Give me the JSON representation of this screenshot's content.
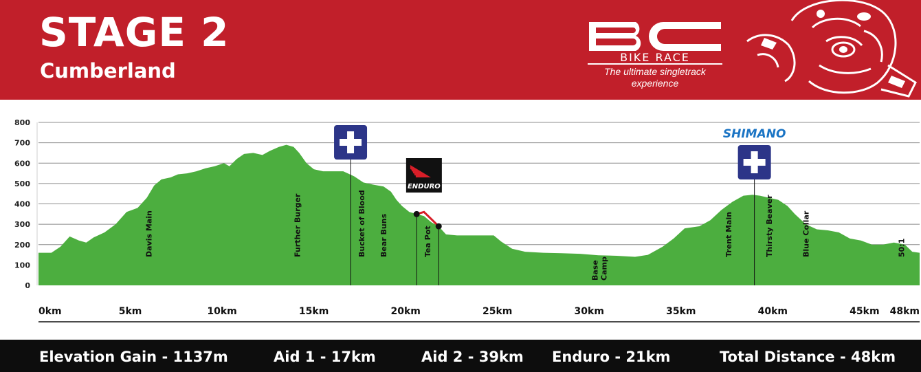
{
  "header": {
    "title": "STAGE 2",
    "subtitle": "Cumberland",
    "logo_mark": "BC",
    "logo_name": "BIKE RACE",
    "logo_tagline": "The ultimate singletrack experience",
    "mascot_icon": "tribal-bear-mascot-icon",
    "colors": {
      "banner": "#c11f2a",
      "text": "#ffffff"
    }
  },
  "chart_data": {
    "type": "area",
    "title": "",
    "xlabel": "",
    "ylabel": "",
    "xlim": [
      0,
      48
    ],
    "ylim": [
      0,
      800
    ],
    "x_ticks": [
      {
        "value": 0,
        "label": "0km"
      },
      {
        "value": 5,
        "label": "5km"
      },
      {
        "value": 10,
        "label": "10km"
      },
      {
        "value": 15,
        "label": "15km"
      },
      {
        "value": 20,
        "label": "20km"
      },
      {
        "value": 25,
        "label": "25km"
      },
      {
        "value": 30,
        "label": "30km"
      },
      {
        "value": 35,
        "label": "35km"
      },
      {
        "value": 40,
        "label": "40km"
      },
      {
        "value": 45,
        "label": "45km"
      },
      {
        "value": 48,
        "label": "48km"
      }
    ],
    "y_ticks": [
      {
        "value": 0,
        "label": "0"
      },
      {
        "value": 100,
        "label": "100"
      },
      {
        "value": 200,
        "label": "200"
      },
      {
        "value": 300,
        "label": "300"
      },
      {
        "value": 400,
        "label": "400"
      },
      {
        "value": 500,
        "label": "500"
      },
      {
        "value": 600,
        "label": "600"
      },
      {
        "value": 700,
        "label": "700"
      },
      {
        "value": 800,
        "label": "800"
      }
    ],
    "grid": true,
    "colors": {
      "fill": "#4cae3f",
      "enduro": "#d81e28",
      "grid": "#8c8c8c",
      "aid_marker": "#2c3588"
    },
    "series": [
      {
        "values": [
          [
            0,
            160
          ],
          [
            0.7,
            160
          ],
          [
            1.2,
            190
          ],
          [
            1.7,
            240
          ],
          [
            2.2,
            220
          ],
          [
            2.6,
            210
          ],
          [
            3.0,
            235
          ],
          [
            3.6,
            260
          ],
          [
            4.2,
            300
          ],
          [
            4.8,
            360
          ],
          [
            5.4,
            380
          ],
          [
            5.9,
            430
          ],
          [
            6.3,
            490
          ],
          [
            6.7,
            520
          ],
          [
            7.2,
            530
          ],
          [
            7.6,
            545
          ],
          [
            8.1,
            550
          ],
          [
            8.6,
            560
          ],
          [
            9.1,
            575
          ],
          [
            9.6,
            585
          ],
          [
            10.1,
            600
          ],
          [
            10.4,
            585
          ],
          [
            10.8,
            620
          ],
          [
            11.2,
            645
          ],
          [
            11.7,
            650
          ],
          [
            12.2,
            640
          ],
          [
            12.6,
            660
          ],
          [
            13.1,
            680
          ],
          [
            13.5,
            690
          ],
          [
            13.9,
            680
          ],
          [
            14.2,
            650
          ],
          [
            14.6,
            600
          ],
          [
            15.0,
            570
          ],
          [
            15.5,
            560
          ],
          [
            16.0,
            560
          ],
          [
            16.6,
            560
          ],
          [
            17.2,
            535
          ],
          [
            17.7,
            505
          ],
          [
            18.2,
            495
          ],
          [
            18.8,
            485
          ],
          [
            19.2,
            460
          ],
          [
            19.5,
            420
          ],
          [
            19.8,
            390
          ],
          [
            20.2,
            360
          ],
          [
            20.6,
            350
          ],
          [
            21.0,
            340
          ],
          [
            21.4,
            310
          ],
          [
            21.8,
            290
          ],
          [
            22.2,
            250
          ],
          [
            22.8,
            245
          ],
          [
            23.5,
            245
          ],
          [
            24.2,
            245
          ],
          [
            24.8,
            245
          ],
          [
            25.2,
            215
          ],
          [
            25.8,
            180
          ],
          [
            26.5,
            165
          ],
          [
            27.5,
            160
          ],
          [
            28.5,
            158
          ],
          [
            29.5,
            155
          ],
          [
            30.5,
            148
          ],
          [
            31.5,
            145
          ],
          [
            32.5,
            140
          ],
          [
            33.2,
            150
          ],
          [
            34.0,
            190
          ],
          [
            34.6,
            230
          ],
          [
            35.2,
            280
          ],
          [
            36.0,
            290
          ],
          [
            36.6,
            320
          ],
          [
            37.2,
            370
          ],
          [
            37.8,
            410
          ],
          [
            38.4,
            440
          ],
          [
            38.9,
            445
          ],
          [
            39.3,
            440
          ],
          [
            39.8,
            430
          ],
          [
            40.3,
            420
          ],
          [
            40.8,
            390
          ],
          [
            41.2,
            350
          ],
          [
            41.8,
            300
          ],
          [
            42.4,
            275
          ],
          [
            43.0,
            270
          ],
          [
            43.6,
            260
          ],
          [
            44.2,
            230
          ],
          [
            44.8,
            220
          ],
          [
            45.4,
            200
          ],
          [
            46.0,
            200
          ],
          [
            46.6,
            210
          ],
          [
            47.2,
            200
          ],
          [
            47.6,
            165
          ],
          [
            48,
            160
          ]
        ]
      }
    ],
    "enduro_segment": [
      [
        20.6,
        350
      ],
      [
        21.0,
        360
      ],
      [
        21.4,
        325
      ],
      [
        21.8,
        290
      ]
    ],
    "location_labels": [
      {
        "text": "Davis Main",
        "x": 6.0
      },
      {
        "text": "Further Burger",
        "x": 14.1
      },
      {
        "text": "Bucket of Blood",
        "x": 17.6
      },
      {
        "text": "Bear Buns",
        "x": 18.8
      },
      {
        "text": "Tea Pot",
        "x": 21.2
      },
      {
        "text": "Base",
        "x": 30.3
      },
      {
        "text": "Camp",
        "x": 30.8
      },
      {
        "text": "Trent Main",
        "x": 37.6
      },
      {
        "text": "Thirsty Beaver",
        "x": 39.8
      },
      {
        "text": "Blue Collar",
        "x": 41.8
      },
      {
        "text": "50:1",
        "x": 47.0
      }
    ],
    "aid_stations": [
      {
        "km": 17,
        "icon": "first-aid-cross-icon"
      },
      {
        "km": 39,
        "icon": "first-aid-cross-icon",
        "sponsor": "SHIMANO"
      }
    ],
    "enduro_badge": {
      "text": "ENDURO",
      "icon": "enduro-logo-icon"
    }
  },
  "footer": {
    "stats": [
      "Elevation Gain - 1137m",
      "Aid 1 - 17km",
      "Aid 2 - 39km",
      "Enduro - 21km",
      "Total Distance - 48km"
    ]
  }
}
